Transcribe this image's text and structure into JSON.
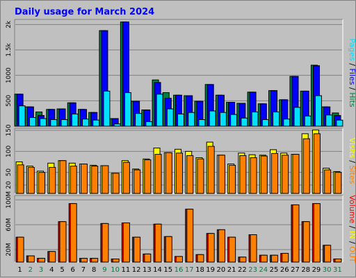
{
  "chart_data": {
    "title": "Daily usage for March 2024",
    "type": "bar",
    "days": [
      "1",
      "2",
      "3",
      "4",
      "5",
      "6",
      "7",
      "8",
      "9",
      "10",
      "11",
      "12",
      "13",
      "14",
      "15",
      "16",
      "17",
      "18",
      "19",
      "20",
      "21",
      "22",
      "23",
      "24",
      "25",
      "26",
      "27",
      "28",
      "29",
      "30",
      "31"
    ],
    "weekend_days": [
      "2",
      "3",
      "9",
      "10",
      "16",
      "17",
      "23",
      "24",
      "30",
      "31"
    ],
    "colors": {
      "pages": "#00e0ff",
      "files": "#0000ff",
      "hits": "#008040",
      "visits": "#ffff00",
      "sites": "#ff8000",
      "kb_in": "#ff0000",
      "kb_out": "#ff8000",
      "weekday_label": "#000000",
      "weekend_label": "#008040"
    },
    "panels": [
      {
        "id": "hits-files-pages",
        "ylim": [
          0,
          2100
        ],
        "yticks": [
          {
            "value": 500,
            "label": "500"
          },
          {
            "value": 1000,
            "label": "1000"
          },
          {
            "value": 1500,
            "label": "1.5k"
          },
          {
            "value": 2000,
            "label": "2k"
          }
        ],
        "series": [
          {
            "key": "hits",
            "color": "#008040",
            "values": [
              630,
              380,
              280,
              330,
              340,
              460,
              330,
              270,
              1880,
              150,
              2050,
              490,
              320,
              910,
              660,
              610,
              600,
              490,
              820,
              610,
              470,
              450,
              670,
              440,
              700,
              520,
              980,
              690,
              1200,
              380,
              260
            ]
          },
          {
            "key": "files",
            "color": "#0000ff",
            "values": [
              630,
              380,
              210,
              330,
              340,
              460,
              330,
              270,
              1880,
              150,
              2050,
              490,
              320,
              860,
              550,
              610,
              600,
              490,
              820,
              610,
              470,
              450,
              670,
              440,
              700,
              520,
              980,
              690,
              1190,
              380,
              210
            ]
          },
          {
            "key": "pages",
            "color": "#00e0ff",
            "values": [
              400,
              170,
              150,
              130,
              130,
              240,
              140,
              120,
              690,
              45,
              660,
              250,
              90,
              630,
              340,
              240,
              270,
              130,
              300,
              270,
              230,
              160,
              280,
              130,
              280,
              140,
              370,
              200,
              600,
              220,
              120
            ]
          }
        ],
        "legend": [
          {
            "text": "Pages",
            "color": "#00e0ff"
          },
          {
            "text": " / ",
            "color": "#000000"
          },
          {
            "text": "Files",
            "color": "#0000ff"
          },
          {
            "text": " / ",
            "color": "#000000"
          },
          {
            "text": "Hits",
            "color": "#008040"
          }
        ]
      },
      {
        "id": "sites-visits",
        "ylim": [
          0,
          155
        ],
        "yticks": [
          {
            "value": 20,
            "label": "20"
          },
          {
            "value": 50,
            "label": "50"
          },
          {
            "value": 100,
            "label": "100"
          },
          {
            "value": 150,
            "label": "150"
          }
        ],
        "series": [
          {
            "key": "visits",
            "color": "#ffff00",
            "values": [
              75,
              65,
              53,
              72,
              78,
              72,
              70,
              67,
              66,
              48,
              78,
              58,
              82,
              108,
              97,
              105,
              100,
              85,
              122,
              91,
              70,
              96,
              92,
              91,
              104,
              96,
              93,
              142,
              151,
              60,
              52
            ]
          },
          {
            "key": "sites",
            "color": "#ff8000",
            "values": [
              68,
              62,
              50,
              62,
              78,
              65,
              70,
              65,
              66,
              48,
              74,
              56,
              80,
              93,
              97,
              96,
              90,
              82,
              112,
              91,
              67,
              90,
              85,
              89,
              95,
              91,
              93,
              130,
              142,
              56,
              50
            ]
          }
        ],
        "legend": [
          {
            "text": "Visits",
            "color": "#ffff00"
          },
          {
            "text": " / ",
            "color": "#000000"
          },
          {
            "text": "Sites",
            "color": "#ff8000"
          }
        ]
      },
      {
        "id": "kbytes",
        "ylim": [
          0,
          107
        ],
        "yticks": [
          {
            "value": 20,
            "label": "20M"
          },
          {
            "value": 60,
            "label": "60M"
          },
          {
            "value": 100,
            "label": "100M"
          }
        ],
        "series": [
          {
            "key": "kb_in",
            "color": "#ff0000",
            "values": [
              40,
              10,
              6,
              17,
              65,
              94,
              6,
              6,
              62,
              5,
              63,
              40,
              13,
              61,
              41,
              9,
              85,
              12,
              46,
              52,
              40,
              8,
              44,
              11,
              11,
              14,
              92,
              65,
              94,
              27,
              5
            ]
          },
          {
            "key": "kb_out",
            "color": "#ff8000",
            "values": [
              40,
              10,
              6,
              17,
              65,
              94,
              6,
              6,
              62,
              5,
              63,
              40,
              13,
              61,
              41,
              9,
              85,
              12,
              46,
              52,
              40,
              8,
              44,
              11,
              11,
              14,
              92,
              65,
              94,
              27,
              5
            ]
          }
        ],
        "legend": [
          {
            "text": "Volume",
            "color": "#ff0000"
          },
          {
            "text": " / ",
            "color": "#000000"
          },
          {
            "text": "IN",
            "color": "#ffff00"
          },
          {
            "text": " / ",
            "color": "#000000"
          },
          {
            "text": "OUT",
            "color": "#ff8000"
          }
        ]
      }
    ]
  }
}
